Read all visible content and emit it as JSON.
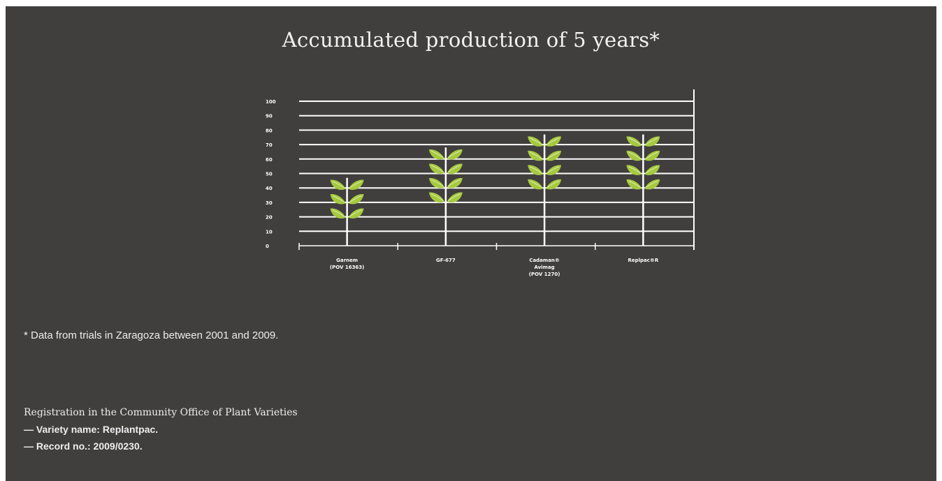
{
  "chart_data": {
    "type": "bar",
    "title": "Accumulated production of 5 years*",
    "y_ticks": [
      "100",
      "90",
      "80",
      "70",
      "60",
      "50",
      "40",
      "30",
      "20",
      "10",
      "0"
    ],
    "ylim": [
      0,
      100
    ],
    "categories": [
      {
        "lines": [
          "Garnem",
          "(POV 16363)"
        ]
      },
      {
        "lines": [
          "GF-677"
        ]
      },
      {
        "lines": [
          "Cadaman®",
          "Avimag",
          "(POV 1270)"
        ]
      },
      {
        "lines": [
          "Replpac®R"
        ]
      }
    ],
    "values": [
      47,
      68,
      77,
      77
    ],
    "plant_icons_per_bar": [
      3,
      4,
      4,
      4
    ],
    "colors": {
      "background": "#413e3e",
      "grid": "#ffffff",
      "leaf": "#a6c93e",
      "leaf_highlight": "#d7e8a0"
    }
  },
  "footnote": "* Data from trials in Zaragoza between 2001 and 2009.",
  "registration": {
    "title": "Registration in the Community Office of Plant Varieties",
    "variety": "— Variety name: Replantpac.",
    "record": "— Record no.: 2009/0230."
  }
}
